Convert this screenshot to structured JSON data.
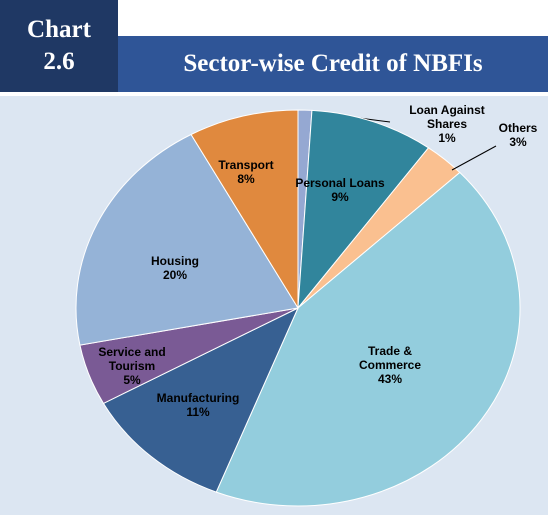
{
  "header": {
    "label": "Chart 2.6",
    "title": "Sector-wise Credit of NBFIs"
  },
  "chart_data": {
    "type": "pie",
    "categories": [
      "Loan Against Shares",
      "Personal Loans",
      "Others",
      "Trade & Commerce",
      "Manufacturing",
      "Service and Tourism",
      "Housing",
      "Transport"
    ],
    "values": [
      1,
      9,
      3,
      43,
      11,
      5,
      20,
      8
    ],
    "value_labels": [
      "1%",
      "9%",
      "3%",
      "43%",
      "11%",
      "5%",
      "20%",
      "8%"
    ],
    "colors": [
      "#95a8d2",
      "#31859c",
      "#fac090",
      "#93cddd",
      "#376092",
      "#7a5a95",
      "#95b3d7",
      "#e0893e"
    ]
  }
}
